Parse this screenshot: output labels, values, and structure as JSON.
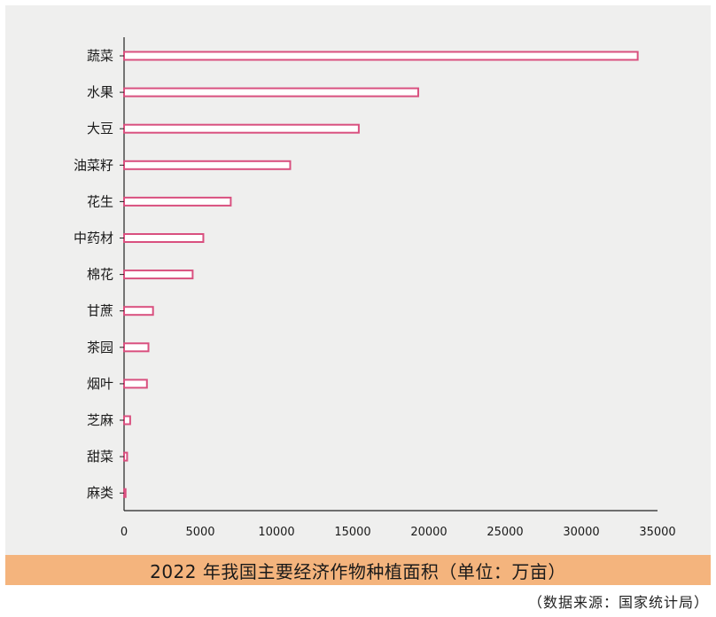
{
  "colors": {
    "panel_background": "#efefee",
    "bar_stroke": "#d9507f",
    "bar_fill": "#ffffff",
    "title_band": "#f4b47d",
    "axis": "#222222"
  },
  "footer": {
    "title": "2022 年我国主要经济作物种植面积（单位：万亩）",
    "source": "（数据来源：国家统计局）"
  },
  "chart_data": {
    "type": "bar",
    "orientation": "horizontal",
    "title": "2022 年我国主要经济作物种植面积（单位：万亩）",
    "xlabel": "",
    "ylabel": "",
    "unit": "万亩",
    "xlim": [
      0,
      35000
    ],
    "x_ticks": [
      0,
      5000,
      10000,
      15000,
      20000,
      25000,
      30000,
      35000
    ],
    "grid": false,
    "legend": "none",
    "categories": [
      "蔬菜",
      "水果",
      "大豆",
      "油菜籽",
      "花生",
      "中药材",
      "棉花",
      "甘蔗",
      "茶园",
      "烟叶",
      "芝麻",
      "甜菜",
      "麻类"
    ],
    "values": [
      33700,
      19300,
      15400,
      10900,
      7000,
      5200,
      4500,
      1900,
      1600,
      1500,
      400,
      200,
      100
    ]
  }
}
